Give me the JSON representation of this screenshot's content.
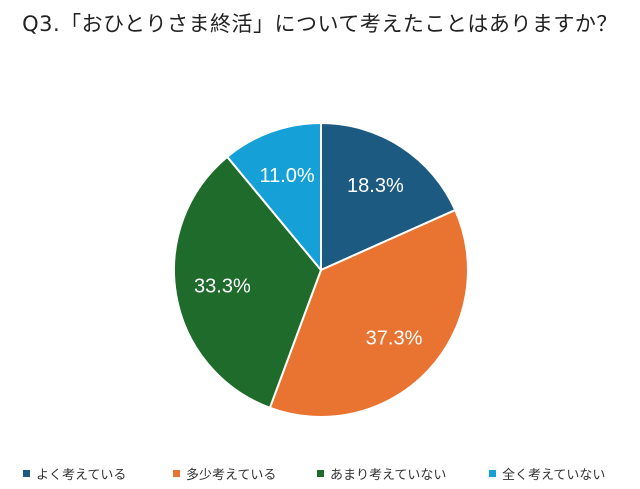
{
  "chart_data": {
    "type": "pie",
    "title": "Q3.「おひとりさま終活」について考えたことはありますか？",
    "categories": [
      "よく考えている",
      "多少考えている",
      "あまり考えていない",
      "全く考えていない"
    ],
    "values": [
      18.3,
      37.3,
      33.3,
      11.0
    ],
    "value_labels": [
      "18.3%",
      "37.3%",
      "33.3%",
      "11.0%"
    ],
    "colors": [
      "#1d5a82",
      "#e97432",
      "#1f6b2c",
      "#15a0d8"
    ],
    "start": "12 o'clock",
    "direction": "clockwise",
    "legend": "bottom"
  }
}
